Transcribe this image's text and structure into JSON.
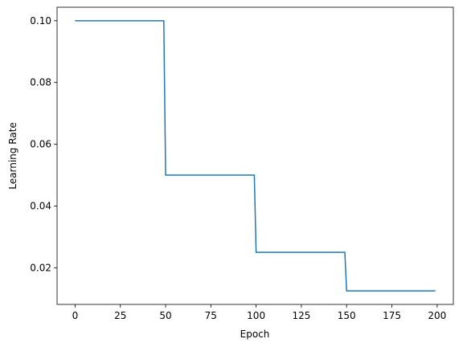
{
  "chart_data": {
    "type": "line",
    "x_label": "Epoch",
    "y_label": "Learning Rate",
    "x": [
      0,
      49,
      50,
      99,
      100,
      149,
      150,
      199
    ],
    "series": [
      {
        "color": "#1f77b4",
        "values": [
          0.1,
          0.1,
          0.05,
          0.05,
          0.025,
          0.025,
          0.0125,
          0.0125
        ]
      }
    ],
    "xlim": [
      -9.95,
      208.95
    ],
    "ylim": [
      0.008125,
      0.104375
    ],
    "xticks": [
      0,
      25,
      50,
      75,
      100,
      125,
      150,
      175,
      200
    ],
    "yticks": [
      0.02,
      0.04,
      0.06,
      0.08,
      {
        "value": 0.1,
        "label": "0.10"
      }
    ],
    "grid": false
  }
}
